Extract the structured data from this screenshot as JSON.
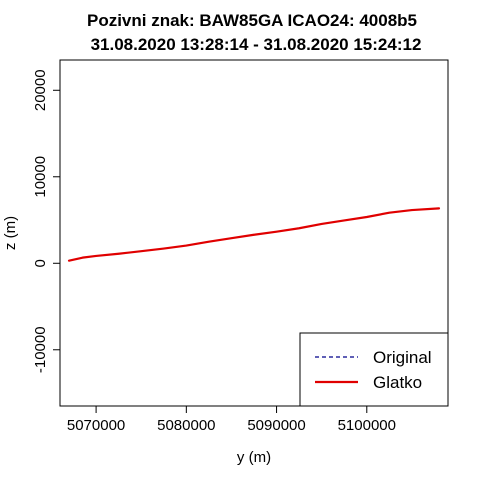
{
  "chart_data": {
    "type": "line",
    "title_line1": "Pozivni znak: BAW85GA  ICAO24: 4008b5",
    "title_line2": "31.08.2020 13:28:14 - 31.08.2020 15:24:12",
    "xlabel": "y (m)",
    "ylabel": "z (m)",
    "xlim": [
      5066000,
      5109000
    ],
    "ylim": [
      -16500,
      23500
    ],
    "x_ticks": [
      5070000,
      5080000,
      5090000,
      5100000
    ],
    "x_tick_labels": [
      "5070000",
      "5080000",
      "5090000",
      "5100000"
    ],
    "y_ticks": [
      -10000,
      0,
      10000,
      20000
    ],
    "y_tick_labels": [
      "-10000",
      "0",
      "10000",
      "20000"
    ],
    "grid": false,
    "legend_position": "bottom-right",
    "series": [
      {
        "name": "Original",
        "color": "#00008b",
        "line_style": "dashed",
        "x": [
          5067000,
          5068500,
          5070000,
          5072500,
          5075000,
          5077500,
          5080000,
          5082500,
          5085000,
          5087500,
          5090000,
          5092500,
          5095000,
          5097500,
          5100000,
          5102500,
          5105000,
          5108000
        ],
        "y": [
          300,
          650,
          850,
          1100,
          1400,
          1700,
          2050,
          2500,
          2900,
          3300,
          3650,
          4050,
          4550,
          4950,
          5350,
          5850,
          6150,
          6350
        ]
      },
      {
        "name": "Glatko",
        "color": "#e00000",
        "line_style": "solid",
        "x": [
          5067000,
          5068500,
          5070000,
          5072500,
          5075000,
          5077500,
          5080000,
          5082500,
          5085000,
          5087500,
          5090000,
          5092500,
          5095000,
          5097500,
          5100000,
          5102500,
          5105000,
          5108000
        ],
        "y": [
          300,
          650,
          850,
          1100,
          1400,
          1700,
          2050,
          2500,
          2900,
          3300,
          3650,
          4050,
          4550,
          4950,
          5350,
          5850,
          6150,
          6350
        ]
      }
    ]
  }
}
